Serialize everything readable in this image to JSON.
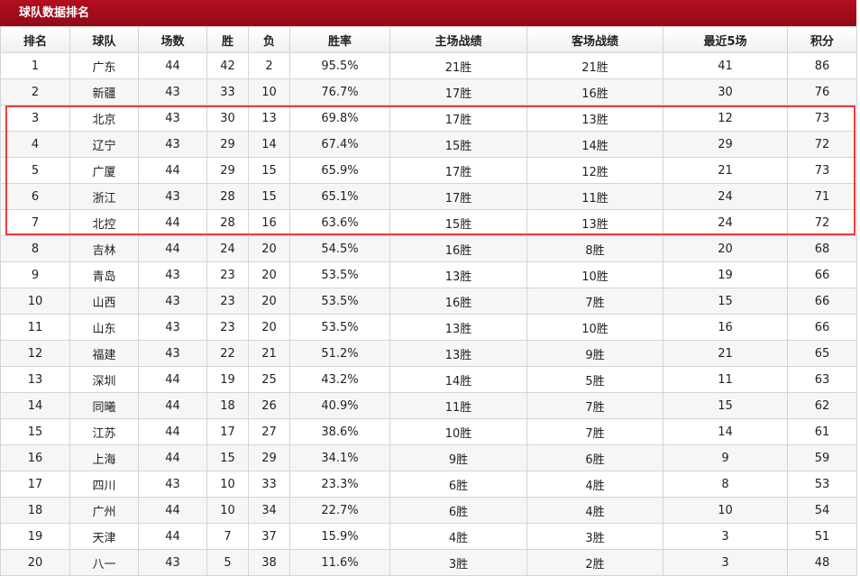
{
  "title": "球队数据排名",
  "highlight_color": "#f23a3a",
  "headers": [
    "排名",
    "球队",
    "场数",
    "胜",
    "负",
    "胜率",
    "主场战绩",
    "客场战绩",
    "最近5场",
    "积分"
  ],
  "rows": [
    [
      "1",
      "广东",
      "44",
      "42",
      "2",
      "95.5%",
      "21胜",
      "21胜",
      "41",
      "86"
    ],
    [
      "2",
      "新疆",
      "43",
      "33",
      "10",
      "76.7%",
      "17胜",
      "16胜",
      "30",
      "76"
    ],
    [
      "3",
      "北京",
      "43",
      "30",
      "13",
      "69.8%",
      "17胜",
      "13胜",
      "12",
      "73"
    ],
    [
      "4",
      "辽宁",
      "43",
      "29",
      "14",
      "67.4%",
      "15胜",
      "14胜",
      "29",
      "72"
    ],
    [
      "5",
      "广厦",
      "44",
      "29",
      "15",
      "65.9%",
      "17胜",
      "12胜",
      "21",
      "73"
    ],
    [
      "6",
      "浙江",
      "43",
      "28",
      "15",
      "65.1%",
      "17胜",
      "11胜",
      "24",
      "71"
    ],
    [
      "7",
      "北控",
      "44",
      "28",
      "16",
      "63.6%",
      "15胜",
      "13胜",
      "24",
      "72"
    ],
    [
      "8",
      "吉林",
      "44",
      "24",
      "20",
      "54.5%",
      "16胜",
      "8胜",
      "20",
      "68"
    ],
    [
      "9",
      "青岛",
      "43",
      "23",
      "20",
      "53.5%",
      "13胜",
      "10胜",
      "19",
      "66"
    ],
    [
      "10",
      "山西",
      "43",
      "23",
      "20",
      "53.5%",
      "16胜",
      "7胜",
      "15",
      "66"
    ],
    [
      "11",
      "山东",
      "43",
      "23",
      "20",
      "53.5%",
      "13胜",
      "10胜",
      "16",
      "66"
    ],
    [
      "12",
      "福建",
      "43",
      "22",
      "21",
      "51.2%",
      "13胜",
      "9胜",
      "21",
      "65"
    ],
    [
      "13",
      "深圳",
      "44",
      "19",
      "25",
      "43.2%",
      "14胜",
      "5胜",
      "11",
      "63"
    ],
    [
      "14",
      "同曦",
      "44",
      "18",
      "26",
      "40.9%",
      "11胜",
      "7胜",
      "15",
      "62"
    ],
    [
      "15",
      "江苏",
      "44",
      "17",
      "27",
      "38.6%",
      "10胜",
      "7胜",
      "14",
      "61"
    ],
    [
      "16",
      "上海",
      "44",
      "15",
      "29",
      "34.1%",
      "9胜",
      "6胜",
      "9",
      "59"
    ],
    [
      "17",
      "四川",
      "43",
      "10",
      "33",
      "23.3%",
      "6胜",
      "4胜",
      "8",
      "53"
    ],
    [
      "18",
      "广州",
      "44",
      "10",
      "34",
      "22.7%",
      "6胜",
      "4胜",
      "10",
      "54"
    ],
    [
      "19",
      "天津",
      "44",
      "7",
      "37",
      "15.9%",
      "4胜",
      "3胜",
      "3",
      "51"
    ],
    [
      "20",
      "八一",
      "43",
      "5",
      "38",
      "11.6%",
      "3胜",
      "2胜",
      "3",
      "48"
    ]
  ]
}
